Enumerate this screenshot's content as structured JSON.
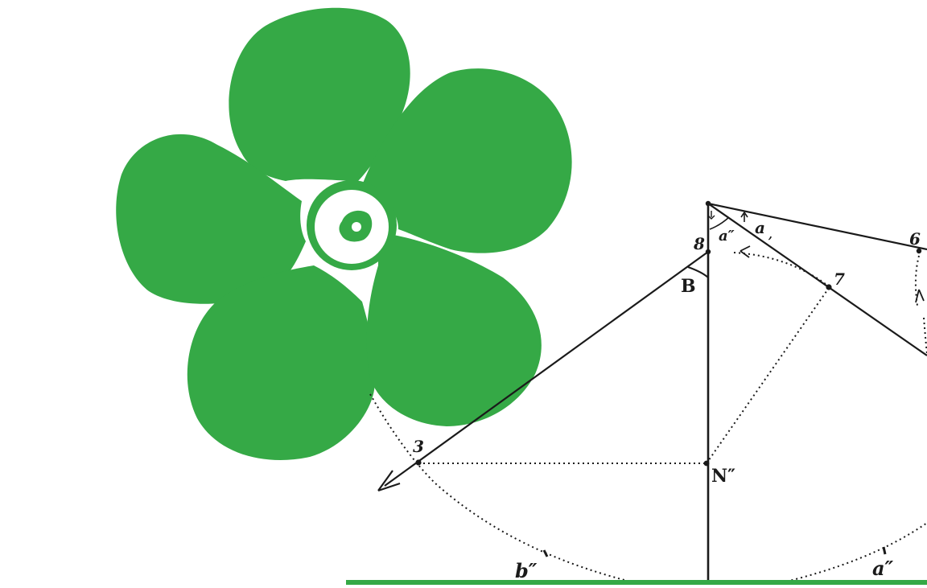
{
  "colors": {
    "flower": "#35a946",
    "ink": "#1a1a1a",
    "ground": "#35a946",
    "background": "#ffffff"
  },
  "labels": {
    "point_8": "8",
    "point_6": "6",
    "point_7": "7",
    "point_3": "3",
    "angle_B": "B",
    "angle_a_double": "a″",
    "angle_a1": "a",
    "pole_N": "N″",
    "arc_b": "b″",
    "arc_a": "a″"
  }
}
